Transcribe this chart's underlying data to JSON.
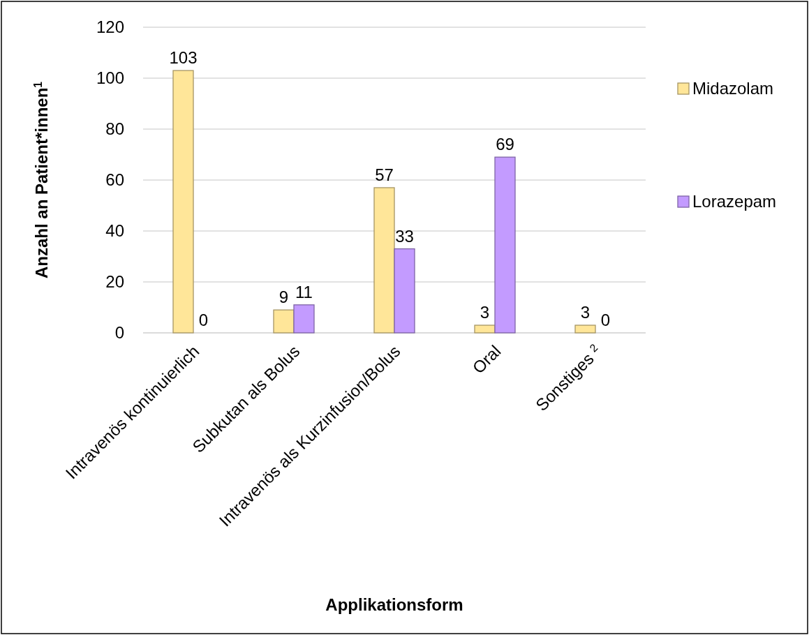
{
  "chart_data": {
    "type": "bar",
    "xlabel": "Applikationsform",
    "ylabel": "Anzahl an Patient*innen$^{1}$",
    "categories": [
      "Intravenös kontinuierlich",
      "Subkutan als Bolus",
      "Intravenös als Kurzinfusion/Bolus",
      "Oral",
      "Sonstiges $^{2}$"
    ],
    "series": [
      {
        "name": "Midazolam",
        "color": "#ffe699",
        "values": [
          103,
          9,
          57,
          3,
          3
        ]
      },
      {
        "name": "Lorazepam",
        "color": "#c39bff",
        "values": [
          0,
          11,
          33,
          69,
          0
        ]
      }
    ],
    "ylim": [
      0,
      120
    ],
    "yticks": [
      0,
      20,
      40,
      60,
      80,
      100,
      120
    ],
    "grid": "y",
    "legend": "right",
    "data_labels": true
  }
}
